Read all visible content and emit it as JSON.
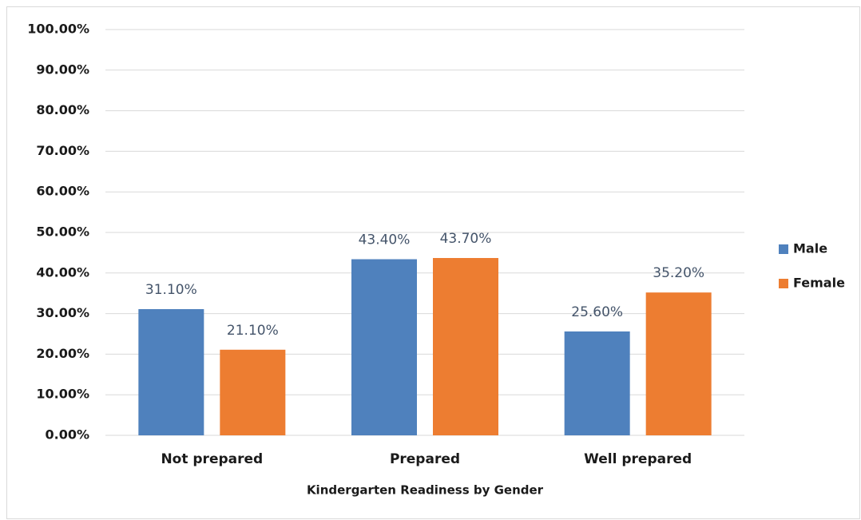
{
  "chart_data": {
    "type": "bar",
    "x_label": "Kindergarten Readiness by Gender",
    "categories": [
      "Not prepared",
      "Prepared",
      "Well prepared"
    ],
    "series": [
      {
        "name": "Male",
        "color": "#4f81bd",
        "values": [
          31.1,
          43.4,
          25.6
        ],
        "value_labels": [
          "31.10%",
          "43.40%",
          "25.60%"
        ]
      },
      {
        "name": "Female",
        "color": "#ed7d31",
        "values": [
          21.1,
          43.7,
          35.2
        ],
        "value_labels": [
          "21.10%",
          "43.70%",
          "35.20%"
        ]
      }
    ],
    "ylim": [
      0,
      100
    ],
    "yticks": [
      {
        "value": 0,
        "label": "0.00%"
      },
      {
        "value": 10,
        "label": "10.00%"
      },
      {
        "value": 20,
        "label": "20.00%"
      },
      {
        "value": 30,
        "label": "30.00%"
      },
      {
        "value": 40,
        "label": "40.00%"
      },
      {
        "value": 50,
        "label": "50.00%"
      },
      {
        "value": 60,
        "label": "60.00%"
      },
      {
        "value": 70,
        "label": "70.00%"
      },
      {
        "value": 80,
        "label": "80.00%"
      },
      {
        "value": 90,
        "label": "90.00%"
      },
      {
        "value": 100,
        "label": "100.00%"
      }
    ],
    "grid": true,
    "legend": "right"
  }
}
